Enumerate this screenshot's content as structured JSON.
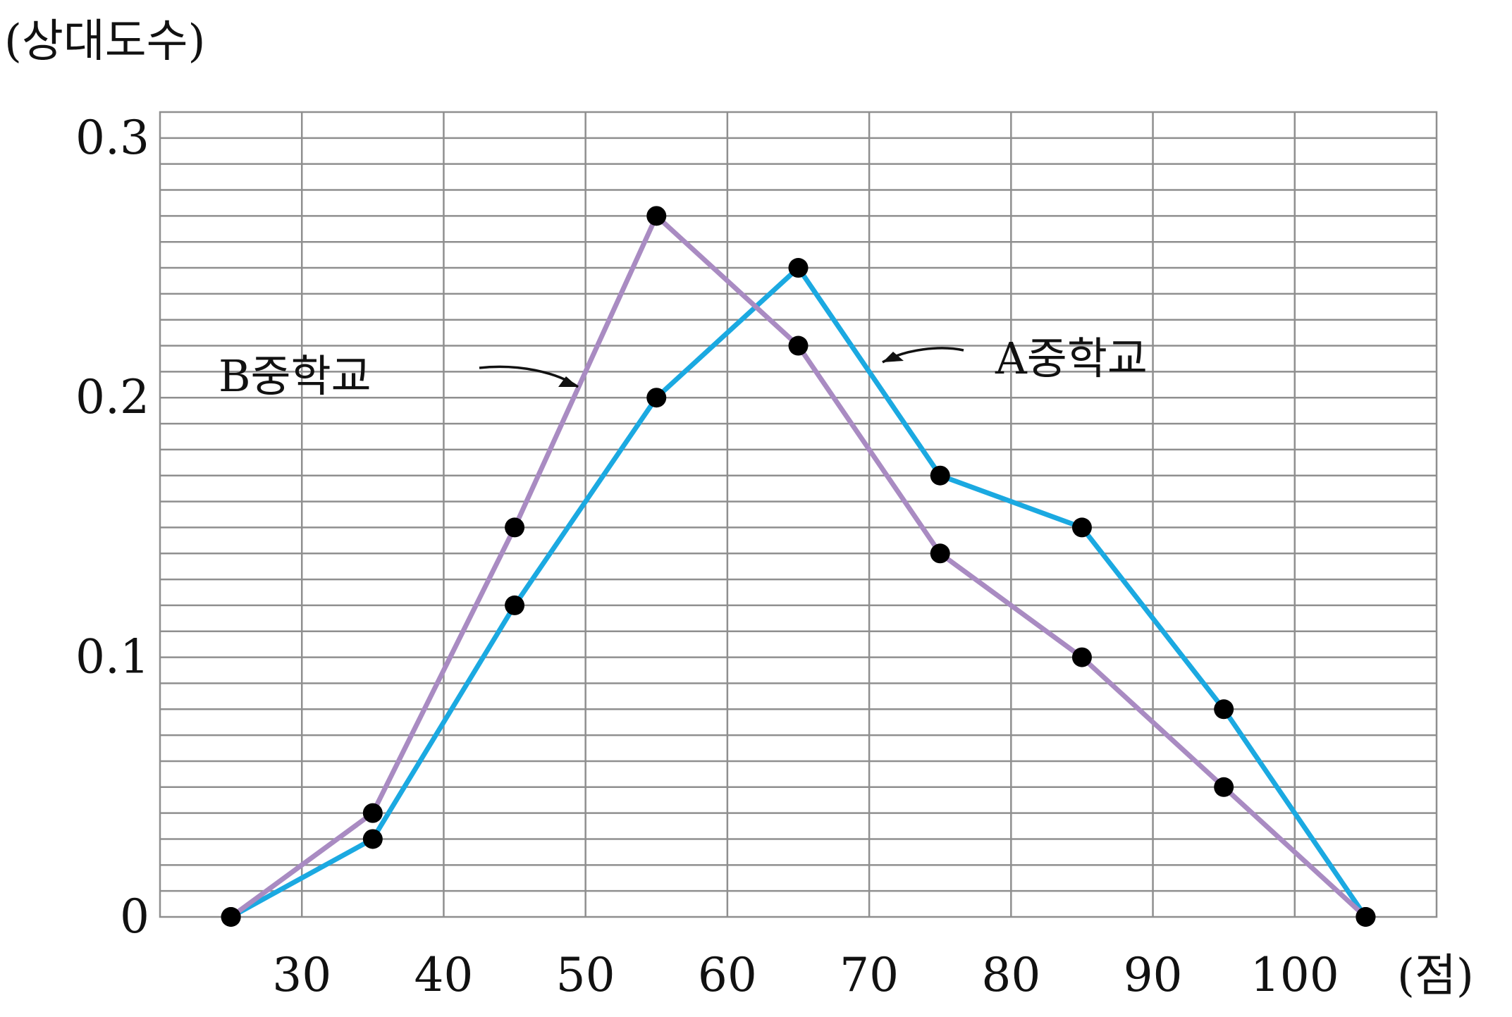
{
  "chart_data": {
    "type": "line",
    "title": "",
    "ylabel": "(상대도수)",
    "xlabel": "(점)",
    "x_ticks": [
      30,
      40,
      50,
      60,
      70,
      80,
      90,
      100
    ],
    "y_ticks": [
      0,
      0.1,
      0.2,
      0.3
    ],
    "y_tick_labels": [
      "0",
      "0.1",
      "0.2",
      "0.3"
    ],
    "xlim": [
      20,
      110
    ],
    "ylim": [
      0,
      0.31
    ],
    "x_minor_step": 10,
    "y_minor_step": 0.01,
    "grid": true,
    "x": [
      25,
      35,
      45,
      55,
      65,
      75,
      85,
      95,
      105
    ],
    "series": [
      {
        "name": "A중학교",
        "color": "#1ba9e1",
        "values": [
          0,
          0.03,
          0.12,
          0.2,
          0.25,
          0.17,
          0.15,
          0.08,
          0
        ]
      },
      {
        "name": "B중학교",
        "color": "#a98bc2",
        "values": [
          0,
          0.04,
          0.15,
          0.27,
          0.22,
          0.14,
          0.1,
          0.05,
          0
        ]
      }
    ],
    "annotations": [
      {
        "series": "A중학교",
        "text": "A중학교",
        "pointer": "arrow",
        "x": 70.5,
        "y": 0.212
      },
      {
        "series": "B중학교",
        "text": "B중학교",
        "pointer": "arrow",
        "x": 49.5,
        "y": 0.203
      }
    ]
  }
}
